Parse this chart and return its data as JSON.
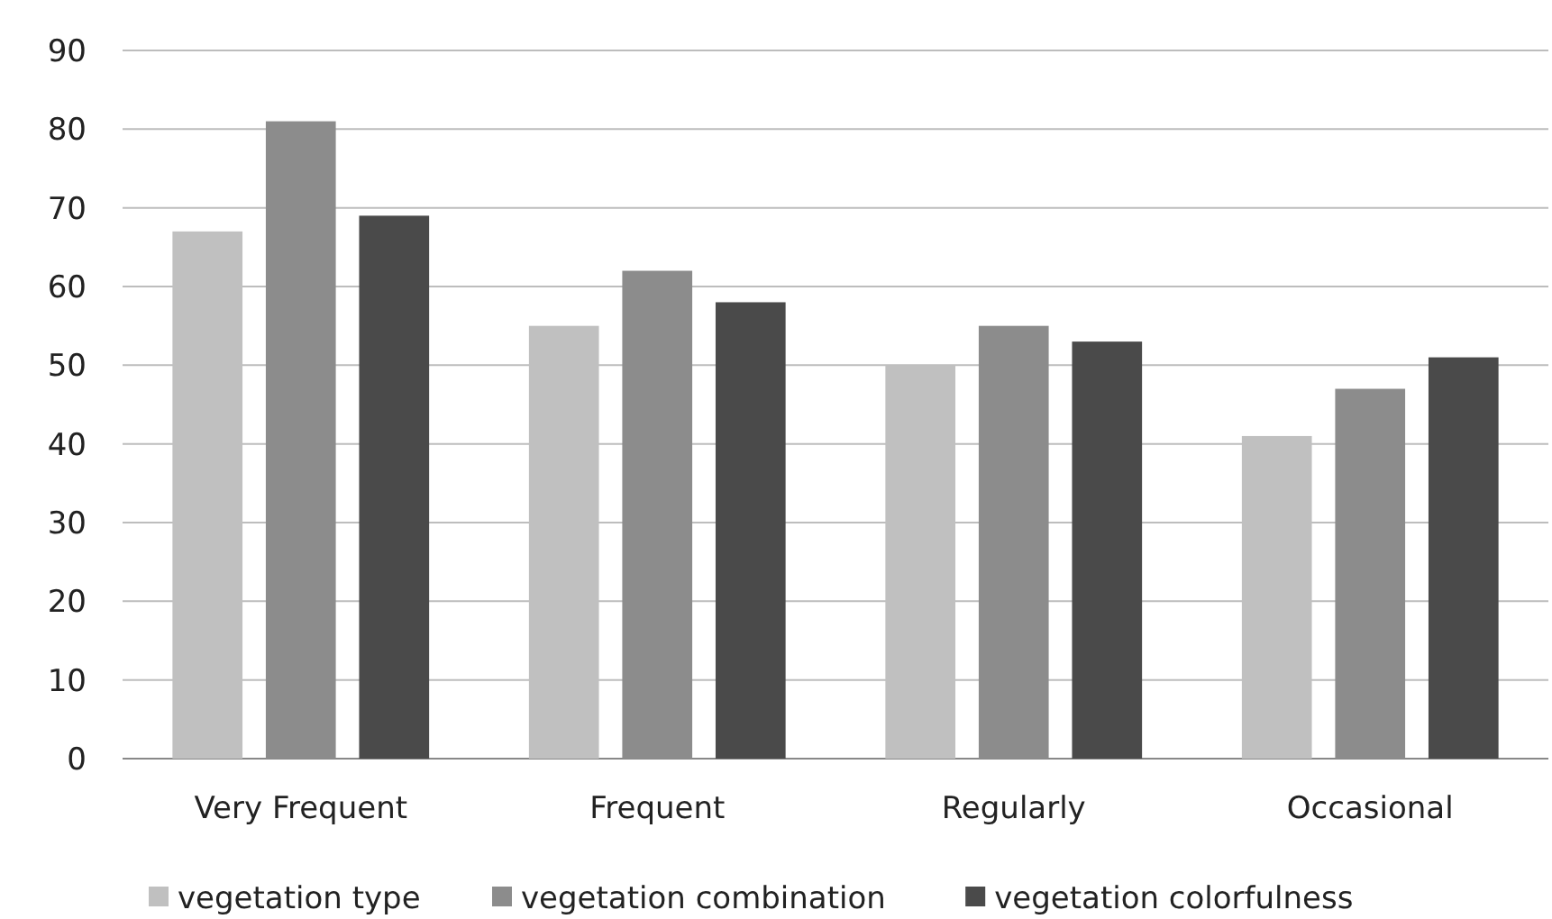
{
  "chart_data": {
    "type": "bar",
    "categories": [
      "Very Frequent",
      "Frequent",
      "Regularly",
      "Occasional"
    ],
    "series": [
      {
        "name": "vegetation type",
        "color": "#c0c0c0",
        "values": [
          67,
          55,
          50,
          41
        ]
      },
      {
        "name": "vegetation combination",
        "color": "#8c8c8c",
        "values": [
          81,
          62,
          55,
          47
        ]
      },
      {
        "name": "vegetation colorfulness",
        "color": "#4a4a4a",
        "values": [
          69,
          58,
          53,
          51
        ]
      }
    ],
    "ylim": [
      0,
      90
    ],
    "yticks": [
      0,
      10,
      20,
      30,
      40,
      50,
      60,
      70,
      80,
      90
    ],
    "grid": "y",
    "legend": "bottom"
  }
}
